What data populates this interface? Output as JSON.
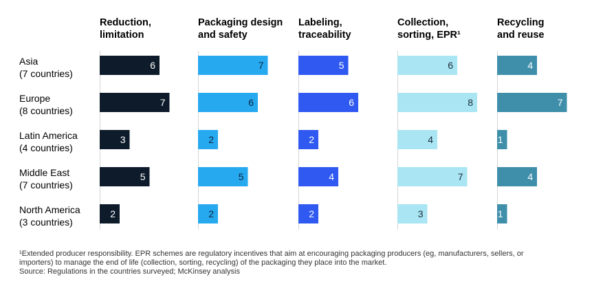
{
  "chart_data": {
    "type": "bar",
    "orientation": "horizontal",
    "categories": [
      "Asia\n(7 countries)",
      "Europe\n(8 countries)",
      "Latin America\n(4 countries)",
      "Middle East\n(7 countries)",
      "North America\n(3 countries)"
    ],
    "series": [
      {
        "name": "Reduction,\nlimitation",
        "color": "#0d1b2a",
        "label_color": "#ffffff",
        "values": [
          6,
          7,
          3,
          5,
          2
        ]
      },
      {
        "name": "Packaging design\nand safety",
        "color": "#27a9f0",
        "label_color": "#0b2540",
        "values": [
          7,
          6,
          2,
          5,
          2
        ]
      },
      {
        "name": "Labeling,\ntraceability",
        "color": "#2f59f0",
        "label_color": "#ffffff",
        "values": [
          5,
          6,
          2,
          4,
          2
        ]
      },
      {
        "name": "Collection,\nsorting, EPR¹",
        "color": "#a9e5f2",
        "label_color": "#1b2a3a",
        "values": [
          6,
          8,
          4,
          7,
          3
        ]
      },
      {
        "name": "Recycling\nand reuse",
        "color": "#3f8faa",
        "label_color": "#ffffff",
        "values": [
          4,
          7,
          1,
          4,
          1
        ]
      }
    ],
    "data_labels": true,
    "legend": "column headers"
  },
  "footnote": {
    "line1": "¹Extended producer responsibility. EPR schemes are regulatory incentives that aim at encouraging packaging producers (eg, manufacturers, sellers, or",
    "line2": " importers) to manage the end of life (collection, sorting, recycling) of the packaging they place into the market.",
    "source": "Source: Regulations in the countries surveyed; McKinsey analysis"
  }
}
